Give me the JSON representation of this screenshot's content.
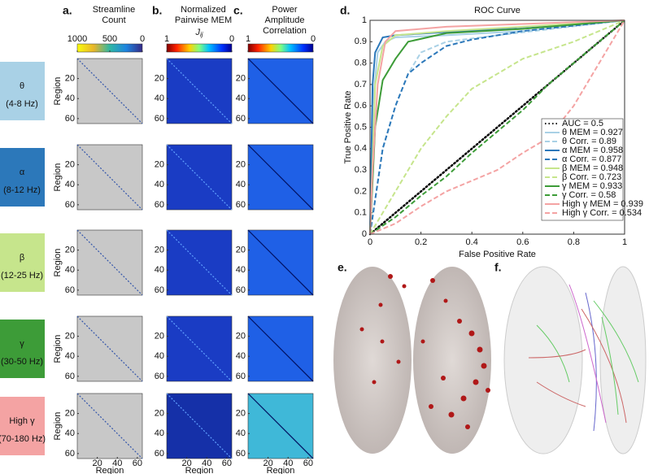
{
  "columns": [
    {
      "letter": "a.",
      "title_lines": [
        "Streamline",
        "Count"
      ],
      "colorbar": {
        "lim": [
          1000,
          0
        ],
        "ticks": [
          1000,
          500,
          0
        ]
      }
    },
    {
      "letter": "b.",
      "title_lines": [
        "Normalized",
        "Pairwise MEM"
      ],
      "sublabel": "J",
      "sublabel_sub": "ij",
      "colorbar": {
        "lim": [
          1,
          0
        ],
        "ticks": [
          1,
          0
        ]
      }
    },
    {
      "letter": "c.",
      "title_lines": [
        "Power",
        "Amplitude",
        "Correlation"
      ],
      "colorbar": {
        "lim": [
          1,
          0
        ],
        "ticks": [
          1,
          0
        ]
      }
    }
  ],
  "bands": [
    {
      "symbol": "θ",
      "range": "(4-8 Hz)",
      "color": "#a9d1e6"
    },
    {
      "symbol": "α",
      "range": "(8-12 Hz)",
      "color": "#2c78ba"
    },
    {
      "symbol": "β",
      "range": "(12-25 Hz)",
      "color": "#c6e58c"
    },
    {
      "symbol": "γ",
      "range": "(30-50 Hz)",
      "color": "#3d9c38"
    },
    {
      "symbol": "High γ",
      "range": "(70-180 Hz)",
      "color": "#f4a3a3"
    }
  ],
  "matrix_axes": {
    "xlabel": "Region",
    "ylabel": "Region",
    "lim": [
      0,
      65
    ],
    "ticks": [
      20,
      40,
      60
    ]
  },
  "chart_data": {
    "type": "line",
    "letter": "d.",
    "title": "ROC Curve",
    "x_label": "False Positive Rate",
    "y_label": "True Positive Rate",
    "xlim": [
      0,
      1
    ],
    "ylim": [
      0,
      1
    ],
    "xticks": [
      0,
      0.2,
      0.4,
      0.6,
      0.8,
      1
    ],
    "yticks": [
      0,
      0.1,
      0.2,
      0.3,
      0.4,
      0.5,
      0.6,
      0.7,
      0.8,
      0.9,
      1
    ],
    "series": [
      {
        "name": "AUC = 0.5",
        "color": "#000000",
        "dash": "dotted",
        "x": [
          0,
          1
        ],
        "values": [
          0,
          1
        ]
      },
      {
        "name": "θ MEM = 0.927",
        "color": "#a9d1e6",
        "dash": "solid",
        "x": [
          0,
          0.01,
          0.03,
          0.06,
          0.1,
          0.3,
          0.6,
          1
        ],
        "values": [
          0,
          0.6,
          0.85,
          0.9,
          0.92,
          0.93,
          0.95,
          1
        ]
      },
      {
        "name": "θ Corr. = 0.89",
        "color": "#a9d1e6",
        "dash": "dashed",
        "x": [
          0,
          0.05,
          0.1,
          0.15,
          0.2,
          0.3,
          0.5,
          1
        ],
        "values": [
          0,
          0.4,
          0.6,
          0.75,
          0.85,
          0.9,
          0.93,
          1
        ]
      },
      {
        "name": "α MEM = 0.958",
        "color": "#2c78ba",
        "dash": "solid",
        "x": [
          0,
          0.01,
          0.02,
          0.05,
          0.1,
          0.5,
          1
        ],
        "values": [
          0,
          0.7,
          0.85,
          0.92,
          0.93,
          0.96,
          1
        ]
      },
      {
        "name": "α Corr. = 0.877",
        "color": "#2c78ba",
        "dash": "dashed",
        "x": [
          0,
          0.05,
          0.1,
          0.15,
          0.2,
          0.3,
          0.4,
          0.6,
          1
        ],
        "values": [
          0,
          0.4,
          0.6,
          0.75,
          0.8,
          0.88,
          0.91,
          0.95,
          1
        ]
      },
      {
        "name": "β MEM = 0.948",
        "color": "#c6e58c",
        "dash": "solid",
        "x": [
          0,
          0.02,
          0.05,
          0.1,
          0.3,
          0.6,
          1
        ],
        "values": [
          0,
          0.7,
          0.88,
          0.93,
          0.95,
          0.97,
          1
        ]
      },
      {
        "name": "β Corr. = 0.723",
        "color": "#c6e58c",
        "dash": "dashed",
        "x": [
          0,
          0.05,
          0.1,
          0.2,
          0.3,
          0.4,
          0.5,
          0.6,
          0.8,
          1
        ],
        "values": [
          0,
          0.1,
          0.2,
          0.4,
          0.55,
          0.68,
          0.75,
          0.82,
          0.9,
          1
        ]
      },
      {
        "name": "γ MEM = 0.933",
        "color": "#3d9c38",
        "dash": "solid",
        "x": [
          0,
          0.02,
          0.05,
          0.1,
          0.15,
          0.3,
          0.6,
          1
        ],
        "values": [
          0,
          0.5,
          0.72,
          0.82,
          0.9,
          0.94,
          0.96,
          1
        ]
      },
      {
        "name": "γ Corr. = 0.58",
        "color": "#3d9c38",
        "dash": "dashed",
        "x": [
          0,
          0.1,
          0.2,
          0.3,
          0.4,
          0.5,
          0.6,
          0.7,
          0.8,
          1
        ],
        "values": [
          0,
          0.08,
          0.18,
          0.27,
          0.38,
          0.48,
          0.58,
          0.7,
          0.8,
          1
        ]
      },
      {
        "name": "High γ MEM = 0.939",
        "color": "#f4a3a3",
        "dash": "solid",
        "x": [
          0,
          0.01,
          0.03,
          0.06,
          0.1,
          0.3,
          1
        ],
        "values": [
          0,
          0.3,
          0.7,
          0.9,
          0.95,
          0.97,
          1
        ]
      },
      {
        "name": "High γ Corr. = 0.534",
        "color": "#f4a3a3",
        "dash": "dashed",
        "x": [
          0,
          0.1,
          0.2,
          0.3,
          0.4,
          0.5,
          0.6,
          0.7,
          0.8,
          0.9,
          1
        ],
        "values": [
          0,
          0.05,
          0.13,
          0.2,
          0.25,
          0.3,
          0.38,
          0.45,
          0.6,
          0.8,
          1
        ]
      }
    ]
  },
  "panel_e": {
    "letter": "e."
  },
  "panel_f": {
    "letter": "f."
  }
}
